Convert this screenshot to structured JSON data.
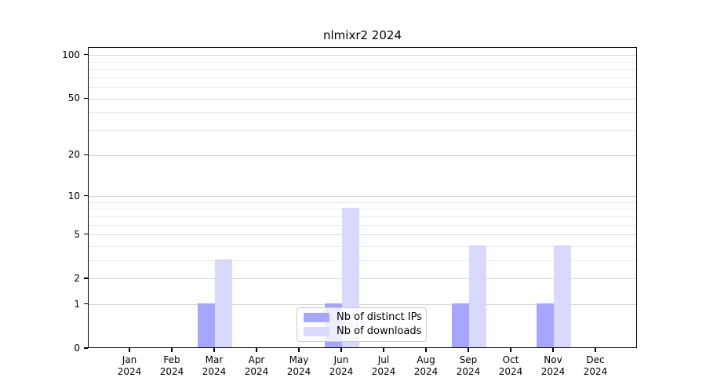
{
  "title": "nlmixr2 2024",
  "chart_data": {
    "type": "bar",
    "title": "nlmixr2 2024",
    "categories": [
      "Jan 2024",
      "Feb 2024",
      "Mar 2024",
      "Apr 2024",
      "May 2024",
      "Jun 2024",
      "Jul 2024",
      "Aug 2024",
      "Sep 2024",
      "Oct 2024",
      "Nov 2024",
      "Dec 2024"
    ],
    "series": [
      {
        "name": "Nb of distinct IPs",
        "color": "#a6a6ff",
        "values": [
          0,
          0,
          1,
          0,
          0,
          1,
          0,
          0,
          1,
          0,
          1,
          0
        ]
      },
      {
        "name": "Nb of downloads",
        "color": "#d9d9ff",
        "values": [
          0,
          0,
          3,
          0,
          0,
          8,
          0,
          0,
          4,
          0,
          4,
          0
        ]
      }
    ],
    "xlabel": "",
    "ylabel": "",
    "yscale": "log1p",
    "ylim": [
      0,
      113
    ],
    "yticks": [
      0,
      1,
      2,
      5,
      10,
      20,
      50,
      100
    ],
    "major_gridlines": [
      1,
      2,
      5,
      10,
      20,
      50,
      100
    ],
    "minor_gridlines": [
      3,
      4,
      6,
      7,
      8,
      9,
      30,
      40,
      60,
      70,
      80,
      90
    ],
    "grid": true,
    "legend_position": "inside-bottom-center"
  },
  "legend": {
    "items": [
      {
        "label": "Nb of distinct IPs",
        "color": "#a6a6ff"
      },
      {
        "label": "Nb of downloads",
        "color": "#d9d9ff"
      }
    ]
  }
}
